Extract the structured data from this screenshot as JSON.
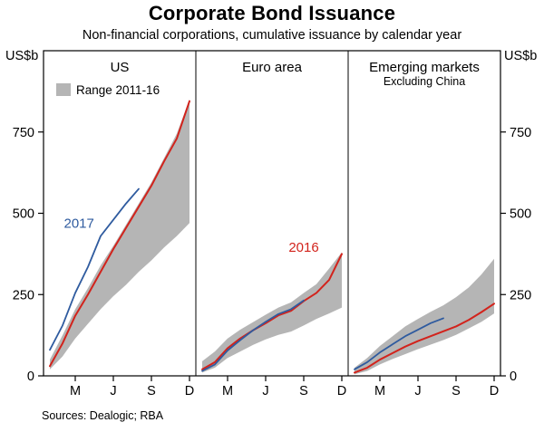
{
  "header": {
    "title": "Corporate Bond Issuance",
    "subtitle": "Non-financial corporations, cumulative issuance by calendar year"
  },
  "footer": {
    "sources": "Sources: Dealogic; RBA"
  },
  "axis": {
    "unit_left": "US$b",
    "unit_right": "US$b",
    "ylim": [
      0,
      1000
    ],
    "yticks": [
      0,
      250,
      500,
      750
    ],
    "xtick_labels": [
      "M",
      "J",
      "S",
      "D"
    ],
    "xtick_months": [
      3,
      6,
      9,
      12
    ]
  },
  "colors": {
    "band": "#b5b5b5",
    "red": "#d2231c",
    "blue": "#2f5b9f",
    "frame": "#000000"
  },
  "legend": {
    "swatch": "band",
    "label": "Range 2011-16"
  },
  "chart_data": [
    {
      "type": "area+line",
      "title": "US",
      "subtitle": "",
      "months": [
        1,
        2,
        3,
        4,
        5,
        6,
        7,
        8,
        9,
        10,
        11,
        12
      ],
      "band": {
        "name": "Range 2011-16",
        "upper": [
          50,
          125,
          205,
          270,
          340,
          400,
          465,
          530,
          595,
          670,
          745,
          850
        ],
        "lower": [
          20,
          60,
          115,
          160,
          205,
          245,
          280,
          320,
          355,
          395,
          430,
          470
        ]
      },
      "series": [
        {
          "name": "2016",
          "color_key": "red",
          "values": [
            30,
            100,
            185,
            250,
            320,
            390,
            455,
            520,
            585,
            660,
            730,
            845
          ]
        },
        {
          "name": "2017",
          "color_key": "blue",
          "values": [
            80,
            155,
            255,
            335,
            430,
            480,
            530,
            575
          ]
        }
      ],
      "labels": [
        {
          "text": "2017",
          "month": 3.3,
          "value": 470,
          "color_key": "blue"
        }
      ]
    },
    {
      "type": "area+line",
      "title": "Euro area",
      "subtitle": "",
      "months": [
        1,
        2,
        3,
        4,
        5,
        6,
        7,
        8,
        9,
        10,
        11,
        12
      ],
      "band": {
        "name": "Range 2011-16",
        "upper": [
          45,
          75,
          115,
          142,
          165,
          188,
          210,
          226,
          255,
          282,
          330,
          380
        ],
        "lower": [
          10,
          25,
          55,
          75,
          95,
          112,
          126,
          136,
          155,
          175,
          192,
          210
        ]
      },
      "series": [
        {
          "name": "2016",
          "color_key": "red",
          "values": [
            20,
            42,
            85,
            115,
            140,
            162,
            186,
            200,
            230,
            255,
            295,
            375
          ]
        },
        {
          "name": "2017",
          "color_key": "blue",
          "values": [
            15,
            35,
            78,
            110,
            140,
            166,
            190,
            205,
            232
          ]
        }
      ],
      "labels": [
        {
          "text": "2016",
          "month": 9.0,
          "value": 395,
          "color_key": "red"
        }
      ]
    },
    {
      "type": "area+line",
      "title": "Emerging markets",
      "subtitle": "Excluding China",
      "months": [
        1,
        2,
        3,
        4,
        5,
        6,
        7,
        8,
        9,
        10,
        11,
        12
      ],
      "band": {
        "name": "Range 2011-16",
        "upper": [
          25,
          55,
          92,
          122,
          152,
          175,
          197,
          217,
          242,
          272,
          312,
          360
        ],
        "lower": [
          5,
          15,
          35,
          52,
          67,
          82,
          96,
          110,
          126,
          146,
          166,
          192
        ]
      },
      "series": [
        {
          "name": "2016",
          "color_key": "red",
          "values": [
            10,
            25,
            50,
            70,
            90,
            107,
            122,
            137,
            152,
            172,
            196,
            222
          ]
        },
        {
          "name": "2017",
          "color_key": "blue",
          "values": [
            20,
            42,
            72,
            97,
            122,
            142,
            162,
            177
          ]
        }
      ],
      "labels": []
    }
  ]
}
